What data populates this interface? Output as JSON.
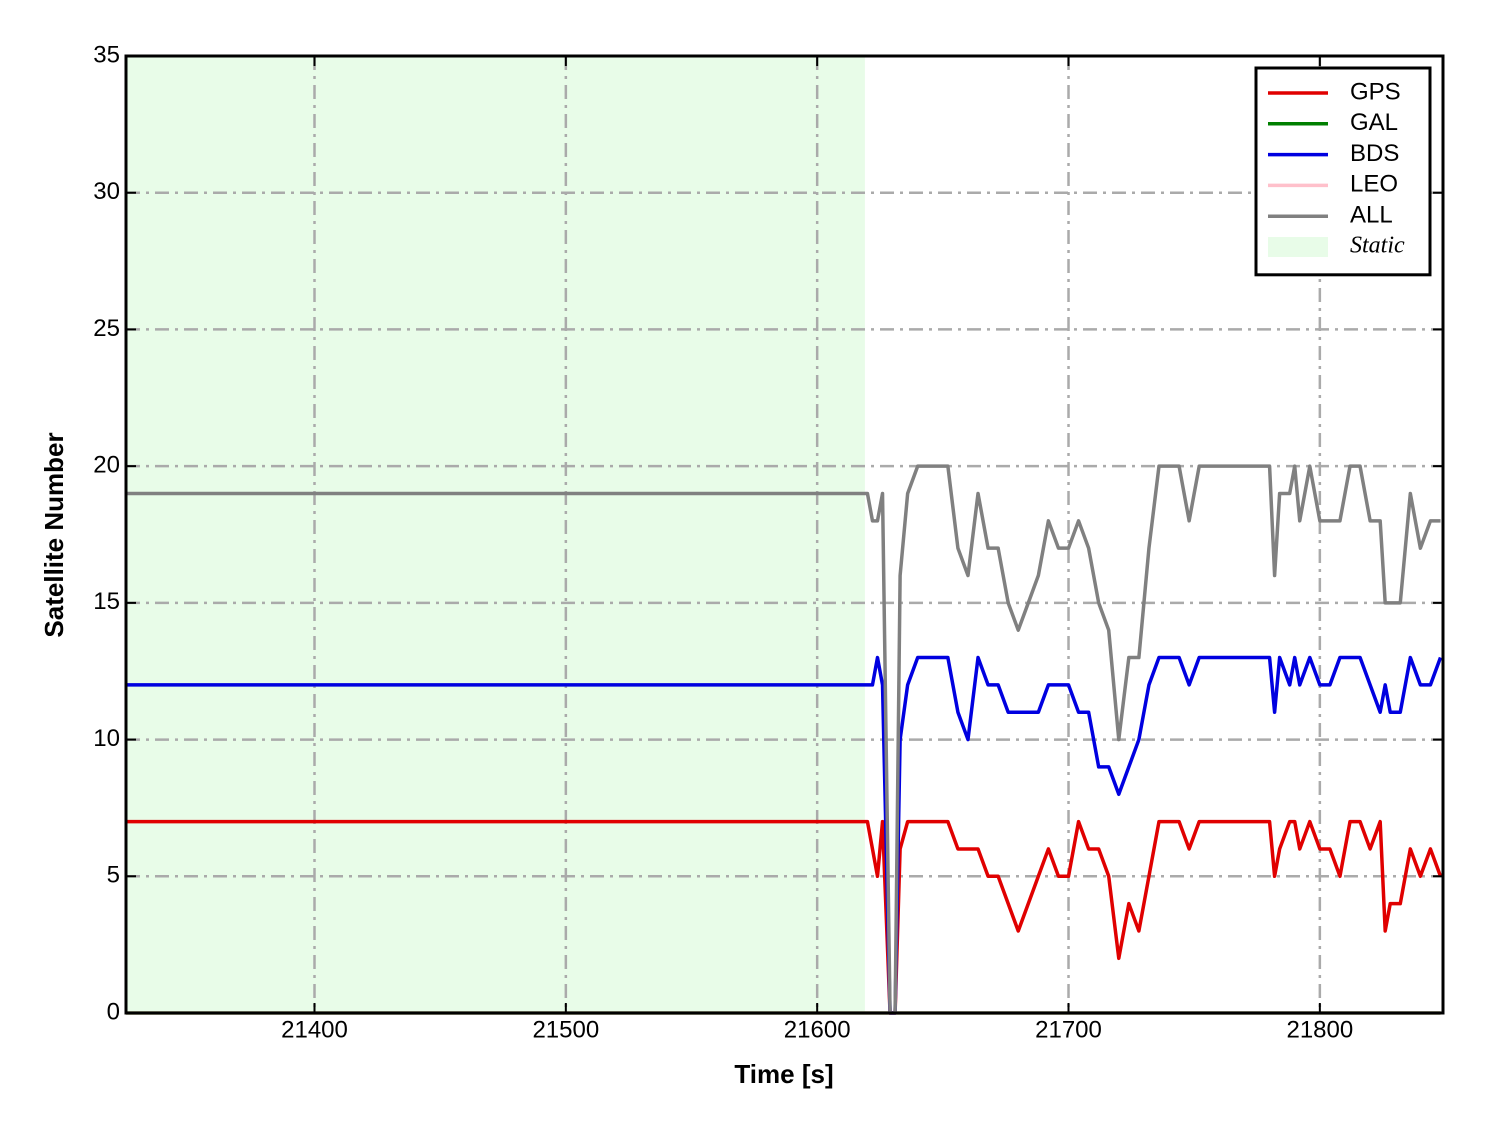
{
  "chart_data": {
    "type": "line",
    "xlabel": "Time [s]",
    "ylabel": "Satellite Number",
    "xlim": [
      21325,
      21849
    ],
    "ylim": [
      0,
      35
    ],
    "xticks": [
      21400,
      21500,
      21600,
      21700,
      21800
    ],
    "yticks": [
      0,
      5,
      10,
      15,
      20,
      25,
      30,
      35
    ],
    "grid": true,
    "legend": "upper right",
    "shade": {
      "range": [
        21325,
        21619
      ],
      "label": "Static",
      "color": "#e8fce8"
    },
    "x": [
      21325,
      21620,
      21622,
      21624,
      21626,
      21629,
      21631,
      21633,
      21636,
      21640,
      21652,
      21656,
      21660,
      21664,
      21668,
      21672,
      21676,
      21680,
      21684,
      21688,
      21692,
      21696,
      21700,
      21704,
      21708,
      21712,
      21716,
      21720,
      21724,
      21728,
      21732,
      21736,
      21744,
      21748,
      21752,
      21780,
      21782,
      21784,
      21788,
      21790,
      21792,
      21796,
      21800,
      21804,
      21808,
      21812,
      21816,
      21820,
      21824,
      21826,
      21828,
      21832,
      21836,
      21840,
      21844,
      21848
    ],
    "series": [
      {
        "name": "GPS",
        "color": "#e00000",
        "values": [
          7,
          7,
          6,
          5,
          7,
          0,
          0,
          6,
          7,
          7,
          7,
          6,
          6,
          6,
          5,
          5,
          4,
          3,
          4,
          5,
          6,
          5,
          5,
          7,
          6,
          6,
          5,
          2,
          4,
          3,
          5,
          7,
          7,
          6,
          7,
          7,
          5,
          6,
          7,
          7,
          6,
          7,
          6,
          6,
          5,
          7,
          7,
          6,
          7,
          3,
          4,
          4,
          6,
          5,
          6,
          5
        ]
      },
      {
        "name": "GAL",
        "color": "#007f00",
        "values": [
          0,
          0,
          0,
          0,
          0,
          0,
          0,
          0,
          0,
          0,
          0,
          0,
          0,
          0,
          0,
          0,
          0,
          0,
          0,
          0,
          0,
          0,
          0,
          0,
          0,
          0,
          0,
          0,
          0,
          0,
          0,
          0,
          0,
          0,
          0,
          0,
          0,
          0,
          0,
          0,
          0,
          0,
          0,
          0,
          0,
          0,
          0,
          0,
          0,
          0,
          0,
          0,
          0,
          0,
          0,
          0
        ]
      },
      {
        "name": "BDS",
        "color": "#0000e0",
        "values": [
          12,
          12,
          12,
          13,
          12,
          0,
          0,
          10,
          12,
          13,
          13,
          11,
          10,
          13,
          12,
          12,
          11,
          11,
          11,
          11,
          12,
          12,
          12,
          11,
          11,
          9,
          9,
          8,
          9,
          10,
          12,
          13,
          13,
          12,
          13,
          13,
          11,
          13,
          12,
          13,
          12,
          13,
          12,
          12,
          13,
          13,
          13,
          12,
          11,
          12,
          11,
          11,
          13,
          12,
          12,
          13
        ]
      },
      {
        "name": "LEO",
        "color": "#ffc0cb",
        "values": [
          0,
          0,
          0,
          0,
          0,
          0,
          0,
          0,
          0,
          0,
          0,
          0,
          0,
          0,
          0,
          0,
          0,
          0,
          0,
          0,
          0,
          0,
          0,
          0,
          0,
          0,
          0,
          0,
          0,
          0,
          0,
          0,
          0,
          0,
          0,
          0,
          0,
          0,
          0,
          0,
          0,
          0,
          0,
          0,
          0,
          0,
          0,
          0,
          0,
          0,
          0,
          0,
          0,
          0,
          0,
          0
        ]
      },
      {
        "name": "ALL",
        "color": "#808080",
        "values": [
          19,
          19,
          18,
          18,
          19,
          0,
          0,
          16,
          19,
          20,
          20,
          17,
          16,
          19,
          17,
          17,
          15,
          14,
          15,
          16,
          18,
          17,
          17,
          18,
          17,
          15,
          14,
          10,
          13,
          13,
          17,
          20,
          20,
          18,
          20,
          20,
          16,
          19,
          19,
          20,
          18,
          20,
          18,
          18,
          18,
          20,
          20,
          18,
          18,
          15,
          15,
          15,
          19,
          17,
          18,
          18
        ]
      }
    ]
  }
}
